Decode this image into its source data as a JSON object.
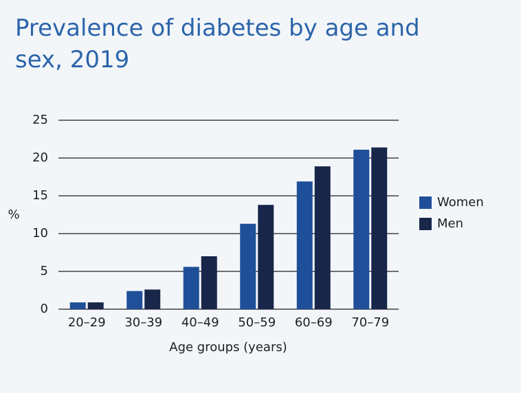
{
  "chart_data": {
    "type": "bar",
    "title": "Prevalence of diabetes by age and sex, 2019",
    "x_label": "Age groups (years)",
    "y_label": "%",
    "categories": [
      "20–29",
      "30–39",
      "40–49",
      "50–59",
      "60–69",
      "70–79"
    ],
    "series": [
      {
        "name": "Women",
        "color": "#1f4f98",
        "values": [
          0.9,
          2.4,
          5.6,
          11.3,
          16.9,
          21.1
        ]
      },
      {
        "name": "Men",
        "color": "#18264a",
        "values": [
          0.9,
          2.6,
          7.0,
          13.8,
          18.9,
          21.4
        ]
      }
    ],
    "ylim": [
      0,
      25
    ],
    "yticks": [
      0,
      5,
      10,
      15,
      20,
      25
    ],
    "grid": true,
    "legend": "right"
  }
}
